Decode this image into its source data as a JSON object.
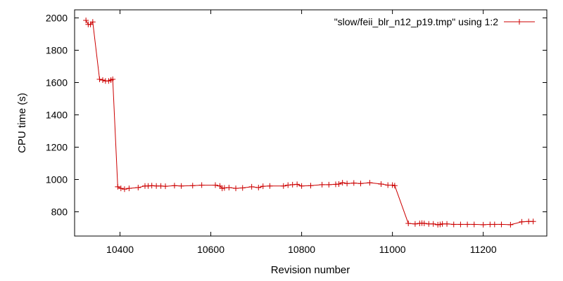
{
  "chart_data": {
    "type": "line",
    "title": "",
    "xlabel": "Revision number",
    "ylabel": "CPU time (s)",
    "xlim": [
      10300,
      11340
    ],
    "ylim": [
      650,
      2050
    ],
    "xticks": [
      10400,
      10600,
      10800,
      11000,
      11200
    ],
    "yticks": [
      800,
      1000,
      1200,
      1400,
      1600,
      1800,
      2000
    ],
    "grid": false,
    "legend_position": "top-right",
    "series": [
      {
        "name": "\"slow/feii_blr_n12_p19.tmp\" using 1:2",
        "color": "#cc0000",
        "marker": "plus",
        "x": [
          10325,
          10330,
          10335,
          10340,
          10355,
          10362,
          10368,
          10375,
          10380,
          10384,
          10395,
          10402,
          10410,
          10420,
          10440,
          10455,
          10462,
          10470,
          10480,
          10490,
          10500,
          10520,
          10535,
          10560,
          10580,
          10610,
          10620,
          10625,
          10630,
          10640,
          10655,
          10670,
          10690,
          10705,
          10715,
          10730,
          10760,
          10770,
          10780,
          10790,
          10800,
          10820,
          10845,
          10860,
          10875,
          10882,
          10890,
          10900,
          10915,
          10930,
          10950,
          10975,
          10990,
          11000,
          11005,
          11035,
          11050,
          11060,
          11065,
          11070,
          11080,
          11090,
          11100,
          11105,
          11110,
          11120,
          11135,
          11150,
          11165,
          11180,
          11200,
          11215,
          11225,
          11240,
          11260,
          11285,
          11300,
          11310
        ],
        "y": [
          1985,
          1960,
          1960,
          1975,
          1620,
          1615,
          1610,
          1610,
          1615,
          1620,
          955,
          945,
          940,
          945,
          950,
          960,
          960,
          962,
          960,
          960,
          958,
          962,
          960,
          962,
          965,
          965,
          960,
          945,
          948,
          950,
          945,
          948,
          955,
          950,
          958,
          960,
          960,
          965,
          968,
          970,
          960,
          962,
          968,
          968,
          970,
          972,
          980,
          975,
          978,
          975,
          980,
          972,
          965,
          965,
          962,
          728,
          725,
          728,
          730,
          728,
          725,
          725,
          720,
          722,
          725,
          725,
          722,
          722,
          722,
          722,
          720,
          722,
          722,
          722,
          720,
          738,
          740,
          740
        ]
      }
    ]
  }
}
